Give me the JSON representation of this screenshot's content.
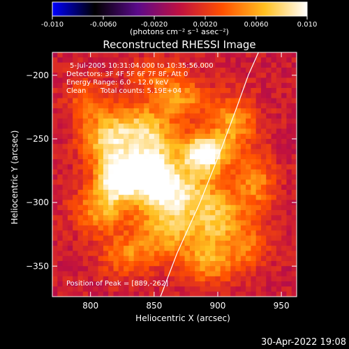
{
  "chart_data": {
    "type": "heatmap",
    "title": "Reconstructed RHESSI Image",
    "xlabel": "Heliocentric X (arcsec)",
    "ylabel": "Heliocentric Y (arcsec)",
    "xlim": [
      770,
      962
    ],
    "ylim": [
      -374,
      -182
    ],
    "xticks": [
      800,
      850,
      900,
      950
    ],
    "yticks": [
      -200,
      -250,
      -300,
      -350
    ],
    "colorbar": {
      "range": [
        -0.01,
        0.01
      ],
      "ticks": [
        "-0.010",
        "-0.0060",
        "-0.0020",
        "0.0020",
        "0.0060",
        "0.010"
      ],
      "tick_values": [
        -0.01,
        -0.006,
        -0.002,
        0.002,
        0.006,
        0.01
      ],
      "units": "(photons cm⁻² s⁻¹ asec⁻²)"
    },
    "annotations": {
      "time": "5-Jul-2005 10:31:04.000 to 10:35:56.000",
      "detectors": "Detectors: 3F 4F 5F 6F 7F 8F, Att 0",
      "energy": "Energy Range: 6.0 - 12.0 keV",
      "method": "Clean",
      "counts": "Total counts: 5.19E+04",
      "peak": "Position of Peak = [889,-262]"
    },
    "peak": [
      889,
      -262
    ],
    "sources": [
      {
        "x": 822,
        "y": -280,
        "amp": 0.01,
        "sx": 11,
        "sy": 13
      },
      {
        "x": 848,
        "y": -276,
        "amp": 0.0098,
        "sx": 12,
        "sy": 17
      },
      {
        "x": 889,
        "y": -262,
        "amp": 0.01,
        "sx": 13,
        "sy": 11
      },
      {
        "x": 868,
        "y": -292,
        "amp": 0.007,
        "sx": 16,
        "sy": 14
      },
      {
        "x": 840,
        "y": -242,
        "amp": 0.006,
        "sx": 19,
        "sy": 14
      },
      {
        "x": 812,
        "y": -252,
        "amp": 0.0055,
        "sx": 14,
        "sy": 14
      },
      {
        "x": 808,
        "y": -305,
        "amp": 0.005,
        "sx": 14,
        "sy": 14
      },
      {
        "x": 860,
        "y": -322,
        "amp": 0.0052,
        "sx": 18,
        "sy": 15
      },
      {
        "x": 900,
        "y": -312,
        "amp": 0.006,
        "sx": 15,
        "sy": 19
      },
      {
        "x": 912,
        "y": -238,
        "amp": 0.005,
        "sx": 13,
        "sy": 15
      },
      {
        "x": 872,
        "y": -218,
        "amp": 0.0045,
        "sx": 14,
        "sy": 11
      },
      {
        "x": 828,
        "y": -342,
        "amp": 0.004,
        "sx": 14,
        "sy": 11
      },
      {
        "x": 892,
        "y": -348,
        "amp": 0.0042,
        "sx": 16,
        "sy": 12
      },
      {
        "x": 930,
        "y": -285,
        "amp": 0.0042,
        "sx": 11,
        "sy": 16
      },
      {
        "x": 798,
        "y": -220,
        "amp": 0.003,
        "sx": 12,
        "sy": 12
      },
      {
        "x": 925,
        "y": -335,
        "amp": 0.0032,
        "sx": 10,
        "sy": 12
      },
      {
        "x": 850,
        "y": -200,
        "amp": 0.0028,
        "sx": 14,
        "sy": 9
      }
    ],
    "limb_curve": {
      "x": [
        855,
        868,
        886,
        902,
        915,
        924,
        932
      ],
      "y": [
        -374,
        -340,
        -300,
        -260,
        -225,
        -200,
        -182
      ]
    },
    "colormap": [
      "#0000ff",
      "#000000",
      "#5a0a8a",
      "#c01040",
      "#ff5000",
      "#ffc020",
      "#ffffff"
    ]
  },
  "footer": {
    "timestamp": "30-Apr-2022 19:08"
  }
}
